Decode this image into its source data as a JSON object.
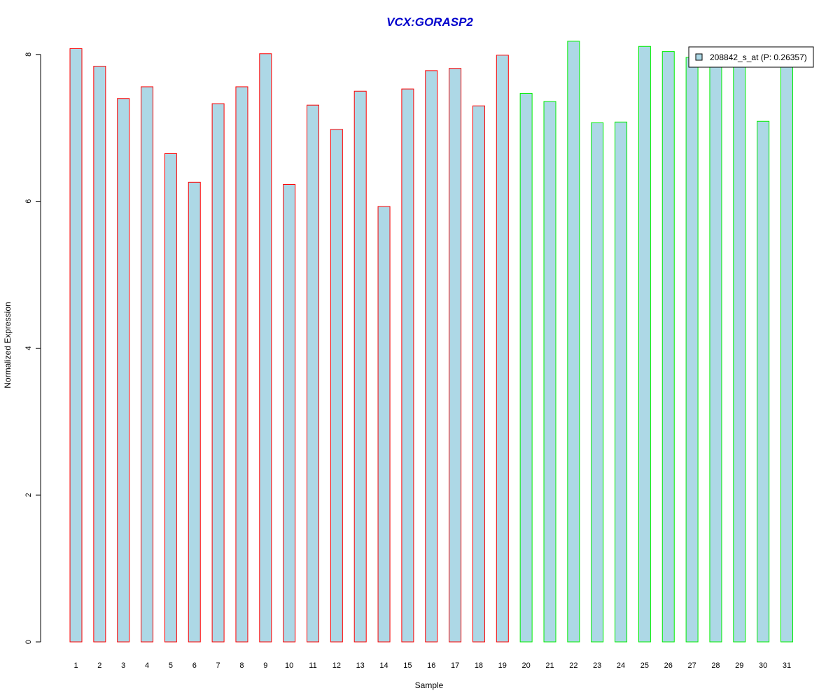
{
  "colors": {
    "bar_fill": "#add8e6",
    "group1_border": "#ff0000",
    "group2_border": "#00ee00",
    "title": "#0000cc"
  },
  "chart_data": {
    "type": "bar",
    "title": "VCX:GORASP2",
    "xlabel": "Sample",
    "ylabel": "Normalized Expression",
    "ylim": [
      0,
      8.2
    ],
    "yticks": [
      "0",
      "2",
      "4",
      "6",
      "8"
    ],
    "grid": false,
    "legend_position": "top-right",
    "legend": [
      {
        "label": "208842_s_at (P: 0.26357)",
        "color": "#add8e6"
      }
    ],
    "categories": [
      "1",
      "2",
      "3",
      "4",
      "5",
      "6",
      "7",
      "8",
      "9",
      "10",
      "11",
      "12",
      "13",
      "14",
      "15",
      "16",
      "17",
      "18",
      "19",
      "20",
      "21",
      "22",
      "23",
      "24",
      "25",
      "26",
      "27",
      "28",
      "29",
      "30",
      "31"
    ],
    "values": [
      8.08,
      7.84,
      7.4,
      7.56,
      6.65,
      6.26,
      7.33,
      7.56,
      8.01,
      6.23,
      7.31,
      6.98,
      7.5,
      5.93,
      7.53,
      7.78,
      7.81,
      7.3,
      7.99,
      7.47,
      7.36,
      8.18,
      7.07,
      7.08,
      8.11,
      8.04,
      7.96,
      7.85,
      7.85,
      7.09,
      7.85
    ],
    "groups": [
      1,
      1,
      1,
      1,
      1,
      1,
      1,
      1,
      1,
      1,
      1,
      1,
      1,
      1,
      1,
      1,
      1,
      1,
      1,
      2,
      2,
      2,
      2,
      2,
      2,
      2,
      2,
      2,
      2,
      2,
      2
    ]
  }
}
